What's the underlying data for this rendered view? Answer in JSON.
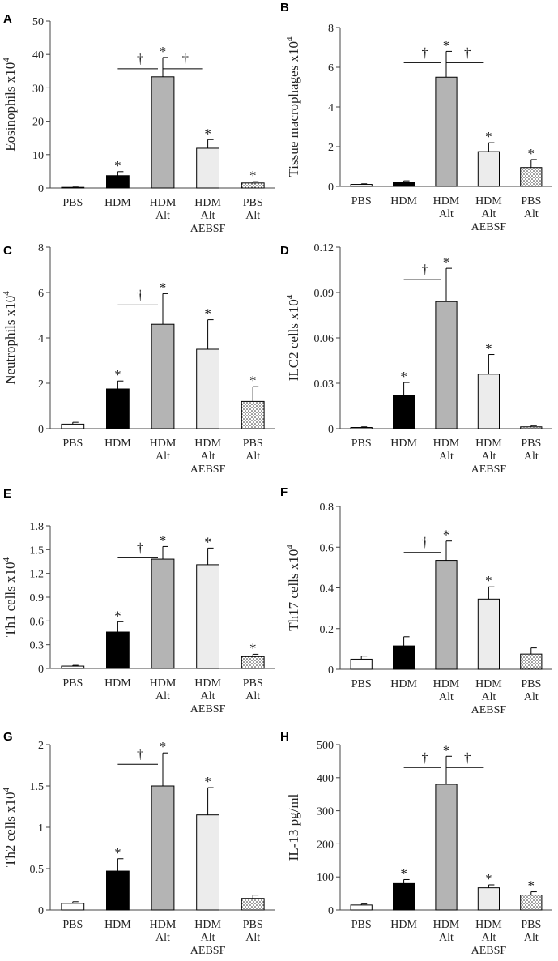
{
  "chart_data": [
    {
      "type": "bar",
      "panel": "A",
      "ylabel": "Eosinophils x10",
      "ylabel_sup": "4",
      "ylim": [
        0,
        50
      ],
      "yticks": [
        "0",
        "10",
        "20",
        "30",
        "40",
        "50"
      ],
      "categories": [
        [
          "PBS"
        ],
        [
          "HDM"
        ],
        [
          "HDM",
          "Alt"
        ],
        [
          "HDM",
          "Alt",
          "AEBSF"
        ],
        [
          "PBS",
          "Alt"
        ]
      ],
      "values": [
        0.2,
        3.7,
        33.3,
        11.9,
        1.5
      ],
      "errors": [
        0.1,
        1.2,
        5.8,
        2.6,
        0.4
      ],
      "star": [
        false,
        true,
        true,
        true,
        true
      ],
      "daggers": [
        [
          1,
          2
        ],
        [
          2,
          3
        ]
      ]
    },
    {
      "type": "bar",
      "panel": "B",
      "ylabel": "Tissue macrophages x10",
      "ylabel_sup": "4",
      "ylim": [
        0,
        8
      ],
      "yticks": [
        "0",
        "2",
        "4",
        "6",
        "8"
      ],
      "categories": [
        [
          "PBS"
        ],
        [
          "HDM"
        ],
        [
          "HDM",
          "Alt"
        ],
        [
          "HDM",
          "Alt",
          "AEBSF"
        ],
        [
          "PBS",
          "Alt"
        ]
      ],
      "values": [
        0.1,
        0.2,
        5.5,
        1.75,
        0.95
      ],
      "errors": [
        0.03,
        0.08,
        1.3,
        0.45,
        0.4
      ],
      "star": [
        false,
        false,
        true,
        true,
        true
      ],
      "daggers": [
        [
          1,
          2
        ],
        [
          2,
          3
        ]
      ]
    },
    {
      "type": "bar",
      "panel": "C",
      "ylabel": "Neutrophils x10",
      "ylabel_sup": "4",
      "ylim": [
        0,
        8
      ],
      "yticks": [
        "0",
        "2",
        "4",
        "6",
        "8"
      ],
      "categories": [
        [
          "PBS"
        ],
        [
          "HDM"
        ],
        [
          "HDM",
          "Alt"
        ],
        [
          "HDM",
          "Alt",
          "AEBSF"
        ],
        [
          "PBS",
          "Alt"
        ]
      ],
      "values": [
        0.2,
        1.75,
        4.6,
        3.5,
        1.2
      ],
      "errors": [
        0.08,
        0.35,
        1.35,
        1.3,
        0.65
      ],
      "star": [
        false,
        true,
        true,
        true,
        true
      ],
      "daggers": [
        [
          1,
          2
        ]
      ]
    },
    {
      "type": "bar",
      "panel": "D",
      "ylabel": "ILC2 cells x10",
      "ylabel_sup": "4",
      "ylim": [
        0,
        0.12
      ],
      "yticks": [
        "0",
        "0.03",
        "0.06",
        "0.09",
        "0.12"
      ],
      "categories": [
        [
          "PBS"
        ],
        [
          "HDM"
        ],
        [
          "HDM",
          "Alt"
        ],
        [
          "HDM",
          "Alt",
          "AEBSF"
        ],
        [
          "PBS",
          "Alt"
        ]
      ],
      "values": [
        0.0008,
        0.022,
        0.084,
        0.036,
        0.0012
      ],
      "errors": [
        0.0004,
        0.0085,
        0.022,
        0.013,
        0.0008
      ],
      "star": [
        false,
        true,
        true,
        true,
        false
      ],
      "daggers": [
        [
          1,
          2
        ]
      ]
    },
    {
      "type": "bar",
      "panel": "E",
      "ylabel": "Th1 cells x10",
      "ylabel_sup": "4",
      "ylim": [
        0,
        1.8
      ],
      "yticks": [
        "0",
        "0.3",
        "0.6",
        "0.9",
        "1.2",
        "1.5",
        "1.8"
      ],
      "categories": [
        [
          "PBS"
        ],
        [
          "HDM"
        ],
        [
          "HDM",
          "Alt"
        ],
        [
          "HDM",
          "Alt",
          "AEBSF"
        ],
        [
          "PBS",
          "Alt"
        ]
      ],
      "values": [
        0.03,
        0.46,
        1.38,
        1.31,
        0.15
      ],
      "errors": [
        0.01,
        0.13,
        0.16,
        0.21,
        0.03
      ],
      "star": [
        false,
        true,
        true,
        true,
        true
      ],
      "daggers": [
        [
          1,
          2
        ]
      ]
    },
    {
      "type": "bar",
      "panel": "F",
      "ylabel": "Th17 cells x10",
      "ylabel_sup": "4",
      "ylim": [
        0,
        0.8
      ],
      "yticks": [
        "0",
        "0.2",
        "0.4",
        "0.6",
        "0.8"
      ],
      "categories": [
        [
          "PBS"
        ],
        [
          "HDM"
        ],
        [
          "HDM",
          "Alt"
        ],
        [
          "HDM",
          "Alt",
          "AEBSF"
        ],
        [
          "PBS",
          "Alt"
        ]
      ],
      "values": [
        0.05,
        0.115,
        0.535,
        0.345,
        0.075
      ],
      "errors": [
        0.015,
        0.045,
        0.095,
        0.06,
        0.03
      ],
      "star": [
        false,
        false,
        true,
        true,
        false
      ],
      "daggers": [
        [
          1,
          2
        ]
      ]
    },
    {
      "type": "bar",
      "panel": "G",
      "ylabel": "Th2 cells x10",
      "ylabel_sup": "4",
      "ylim": [
        0,
        2
      ],
      "yticks": [
        "0",
        "0.5",
        "1",
        "1.5",
        "2"
      ],
      "categories": [
        [
          "PBS"
        ],
        [
          "HDM"
        ],
        [
          "HDM",
          "Alt"
        ],
        [
          "HDM",
          "Alt",
          "AEBSF"
        ],
        [
          "PBS",
          "Alt"
        ]
      ],
      "values": [
        0.08,
        0.47,
        1.5,
        1.15,
        0.14
      ],
      "errors": [
        0.02,
        0.15,
        0.4,
        0.33,
        0.04
      ],
      "star": [
        false,
        true,
        true,
        true,
        false
      ],
      "daggers": [
        [
          1,
          2
        ]
      ]
    },
    {
      "type": "bar",
      "panel": "H",
      "ylabel": "IL-13 pg/ml",
      "ylabel_sup": "",
      "ylim": [
        0,
        500
      ],
      "yticks": [
        "0",
        "100",
        "200",
        "300",
        "400",
        "500"
      ],
      "categories": [
        [
          "PBS"
        ],
        [
          "HDM"
        ],
        [
          "HDM",
          "Alt"
        ],
        [
          "HDM",
          "Alt",
          "AEBSF"
        ],
        [
          "PBS",
          "Alt"
        ]
      ],
      "values": [
        15,
        80,
        380,
        67,
        45
      ],
      "errors": [
        3,
        12,
        85,
        9,
        10
      ],
      "star": [
        false,
        true,
        true,
        true,
        true
      ],
      "daggers": [
        [
          1,
          2
        ],
        [
          2,
          3
        ]
      ]
    }
  ],
  "annotations": {
    "star": "*",
    "dagger": "†"
  },
  "colors": {
    "PBS": "#ffffff",
    "HDM": "#000000",
    "HDM Alt": "#b4b4b4",
    "HDM Alt AEBSF": "#ececec",
    "PBS Alt": "#dadada",
    "axis": "#444444"
  }
}
